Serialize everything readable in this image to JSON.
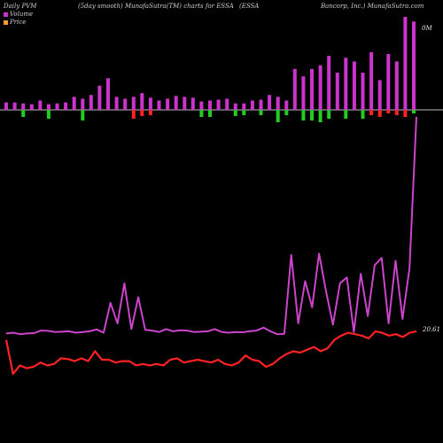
{
  "header": {
    "left": "Daily PVM",
    "middle": "(5day smooth) MunafaSutra(TM) charts for ESSA",
    "right_a": "(ESSA",
    "right_b": "Bancorp, Inc.) MunafaSutra.com"
  },
  "legend": {
    "volume": "Volume",
    "price": "Price"
  },
  "labels": {
    "volume_axis": "0M",
    "last_price": "20.61"
  },
  "colors": {
    "background": "#000000",
    "volume_up": "#cc33cc",
    "volume_down_red": "#ff2222",
    "volume_down_green": "#22cc22",
    "pvm_line": "#cc44cc",
    "price_line": "#ff2222",
    "zero_line": "#bbbbbb"
  },
  "chart_data": {
    "type": "line",
    "title": "Daily PVM (5day smooth) MunafaSutra(TM) charts for ESSA",
    "volume_zero_label": "0M",
    "last_price_label": 20.61,
    "volume_bars": {
      "up": [
        8,
        8,
        7,
        6,
        10,
        6,
        7,
        8,
        14,
        12,
        16,
        26,
        34,
        14,
        12,
        14,
        18,
        13,
        10,
        12,
        15,
        14,
        13,
        9,
        10,
        11,
        12,
        7,
        7,
        10,
        11,
        16,
        14,
        10,
        44,
        36,
        44,
        48,
        58,
        40,
        56,
        52,
        40,
        62,
        32,
        60,
        52,
        100,
        95
      ],
      "down": [
        0,
        0,
        8,
        0,
        0,
        10,
        0,
        0,
        0,
        12,
        0,
        0,
        0,
        0,
        0,
        10,
        7,
        6,
        0,
        0,
        0,
        0,
        0,
        8,
        8,
        0,
        0,
        7,
        6,
        0,
        6,
        0,
        14,
        6,
        0,
        12,
        12,
        14,
        10,
        0,
        10,
        0,
        10,
        6,
        8,
        4,
        6,
        8,
        4
      ],
      "down_color": [
        "red",
        "red",
        "green",
        "red",
        "red",
        "green",
        "red",
        "red",
        "green",
        "green",
        "red",
        "red",
        "red",
        "red",
        "red",
        "red",
        "red",
        "red",
        "red",
        "red",
        "red",
        "red",
        "red",
        "green",
        "green",
        "red",
        "red",
        "green",
        "green",
        "red",
        "green",
        "red",
        "green",
        "green",
        "red",
        "green",
        "green",
        "green",
        "green",
        "red",
        "green",
        "red",
        "green",
        "red",
        "red",
        "red",
        "red",
        "red",
        "green"
      ]
    },
    "series": [
      {
        "values": [
          -0.9,
          -0.85,
          -0.95,
          -0.9,
          -0.88,
          -0.7,
          -0.72,
          -0.8,
          -0.78,
          -0.75,
          -0.85,
          -0.8,
          -0.75,
          -0.62,
          -0.85,
          1.2,
          -0.2,
          2.55,
          -0.6,
          1.6,
          -0.65,
          -0.7,
          -0.8,
          -0.6,
          -0.75,
          -0.68,
          -0.7,
          -0.8,
          -0.78,
          -0.75,
          -0.6,
          -0.8,
          -0.85,
          -0.8,
          -0.82,
          -0.75,
          -0.7,
          -0.5,
          -0.75,
          -0.95,
          -0.92,
          4.5,
          -0.2,
          2.7,
          0.9,
          4.6,
          2.0,
          -0.3,
          2.55,
          2.95,
          -0.8,
          3.2,
          0.3,
          3.8,
          4.3,
          -0.2,
          4.1,
          0.1,
          3.6,
          14.0
        ]
      },
      {
        "values": [
          20.0,
          17.6,
          18.2,
          18.0,
          18.1,
          18.4,
          18.2,
          18.3,
          18.7,
          18.65,
          18.5,
          18.7,
          18.5,
          19.2,
          18.6,
          18.6,
          18.4,
          18.5,
          18.5,
          18.2,
          18.3,
          18.2,
          18.3,
          18.2,
          18.6,
          18.7,
          18.4,
          18.5,
          18.6,
          18.5,
          18.4,
          18.6,
          18.3,
          18.2,
          18.4,
          18.9,
          18.6,
          18.5,
          18.1,
          18.3,
          18.7,
          19.0,
          19.2,
          19.1,
          19.3,
          19.5,
          19.2,
          19.4,
          20.0,
          20.3,
          20.5,
          20.4,
          20.3,
          20.1,
          20.6,
          20.5,
          20.3,
          20.4,
          20.2,
          20.5,
          20.6
        ]
      }
    ]
  }
}
